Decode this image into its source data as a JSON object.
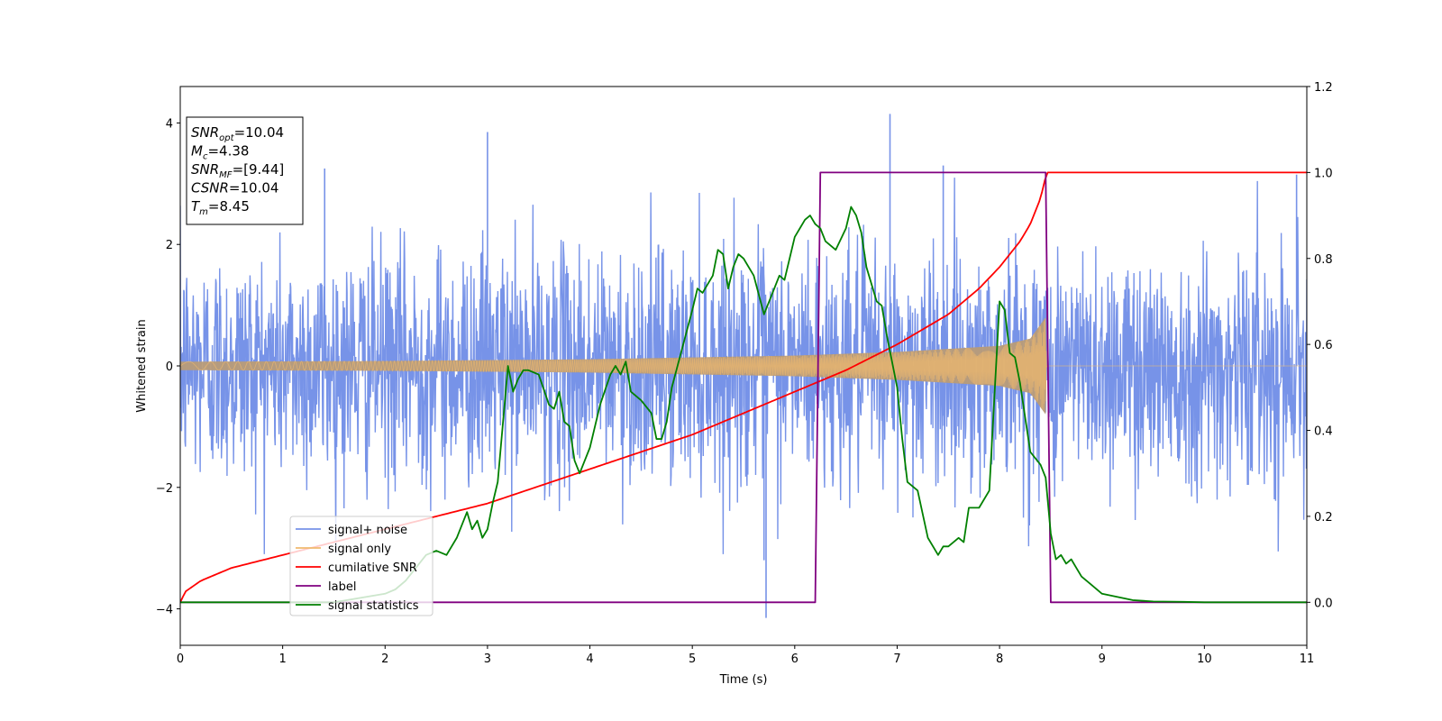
{
  "chart_data": {
    "type": "line",
    "xlabel": "Time (s)",
    "ylabel": "Whitened strain",
    "xlim": [
      0,
      11
    ],
    "ylim": [
      -4.6,
      4.6
    ],
    "y2lim": [
      -0.1,
      1.2
    ],
    "x_ticks": [
      0,
      1,
      2,
      3,
      4,
      5,
      6,
      7,
      8,
      9,
      10,
      11
    ],
    "y_ticks": [
      -4,
      -2,
      0,
      2,
      4
    ],
    "y2_ticks": [
      "0.0",
      "0.2",
      "0.4",
      "0.6",
      "0.8",
      "1.0",
      "1.2"
    ],
    "grid": false,
    "legend_position": "lower-left",
    "info_box": {
      "lines": [
        {
          "main": "SNR",
          "sub": "opt",
          "rest": "=10.04"
        },
        {
          "main": "M",
          "sub": "c",
          "rest": "=4.38"
        },
        {
          "main": "SNR",
          "sub": "MF",
          "rest": "=[9.44]"
        },
        {
          "main": "CSNR",
          "sub": "",
          "rest": "=10.04"
        },
        {
          "main": "T",
          "sub": "m",
          "rest": "=8.45"
        }
      ]
    },
    "series": [
      {
        "name": "signal+ noise",
        "color": "#7793e8",
        "axis": "left",
        "kind": "noise",
        "amplitude_sd": 0.95,
        "extremes": [
          [
            1.41,
            3.25
          ],
          [
            3.0,
            3.85
          ],
          [
            5.7,
            -3.2
          ],
          [
            5.72,
            -4.15
          ],
          [
            6.93,
            4.15
          ],
          [
            7.45,
            3.3
          ],
          [
            10.9,
            3.15
          ]
        ]
      },
      {
        "name": "signal only",
        "color": "#f0b96e",
        "axis": "left",
        "kind": "chirp",
        "envelope": [
          [
            0,
            0.07
          ],
          [
            2,
            0.08
          ],
          [
            4,
            0.11
          ],
          [
            6,
            0.17
          ],
          [
            7,
            0.23
          ],
          [
            8,
            0.33
          ],
          [
            8.3,
            0.45
          ],
          [
            8.45,
            0.8
          ],
          [
            8.46,
            0.0
          ],
          [
            11,
            0.0
          ]
        ]
      },
      {
        "name": "cumilative SNR",
        "color": "#ff0000",
        "axis": "right",
        "x": [
          0,
          0.05,
          0.2,
          0.5,
          1,
          1.5,
          2,
          2.5,
          3,
          3.5,
          4,
          4.5,
          5,
          5.5,
          6,
          6.5,
          7,
          7.5,
          7.8,
          8.0,
          8.2,
          8.3,
          8.4,
          8.45,
          8.46,
          11
        ],
        "y": [
          0.0,
          0.025,
          0.05,
          0.08,
          0.11,
          0.14,
          0.17,
          0.2,
          0.23,
          0.27,
          0.31,
          0.35,
          0.39,
          0.44,
          0.49,
          0.54,
          0.6,
          0.67,
          0.73,
          0.78,
          0.84,
          0.88,
          0.94,
          0.99,
          1.0,
          1.0
        ]
      },
      {
        "name": "label",
        "color": "#800080",
        "axis": "right",
        "x": [
          0,
          6.2,
          6.25,
          8.45,
          8.5,
          11
        ],
        "y": [
          0,
          0,
          1,
          1,
          0,
          0
        ]
      },
      {
        "name": "signal statistics",
        "color": "#008000",
        "axis": "right",
        "x": [
          0,
          0.5,
          1,
          1.5,
          2,
          2.1,
          2.2,
          2.3,
          2.4,
          2.5,
          2.6,
          2.7,
          2.8,
          2.85,
          2.9,
          2.95,
          3.0,
          3.05,
          3.1,
          3.2,
          3.25,
          3.3,
          3.35,
          3.4,
          3.5,
          3.6,
          3.65,
          3.7,
          3.75,
          3.8,
          3.85,
          3.9,
          4.0,
          4.1,
          4.2,
          4.25,
          4.3,
          4.35,
          4.4,
          4.5,
          4.6,
          4.65,
          4.7,
          4.75,
          4.8,
          4.9,
          5.0,
          5.05,
          5.1,
          5.2,
          5.25,
          5.3,
          5.35,
          5.4,
          5.45,
          5.5,
          5.6,
          5.7,
          5.8,
          5.85,
          5.9,
          6.0,
          6.1,
          6.15,
          6.2,
          6.25,
          6.3,
          6.4,
          6.5,
          6.55,
          6.6,
          6.65,
          6.7,
          6.8,
          6.85,
          6.9,
          7.0,
          7.05,
          7.1,
          7.2,
          7.3,
          7.4,
          7.45,
          7.5,
          7.6,
          7.65,
          7.7,
          7.8,
          7.9,
          8.0,
          8.05,
          8.1,
          8.15,
          8.2,
          8.3,
          8.4,
          8.45,
          8.5,
          8.55,
          8.6,
          8.65,
          8.7,
          8.75,
          8.8,
          8.9,
          9.0,
          9.1,
          9.2,
          9.3,
          9.5,
          9.8,
          10,
          11
        ],
        "y": [
          0,
          0,
          0.0,
          0.0,
          0.02,
          0.03,
          0.05,
          0.08,
          0.11,
          0.12,
          0.11,
          0.15,
          0.21,
          0.17,
          0.19,
          0.15,
          0.17,
          0.23,
          0.28,
          0.55,
          0.49,
          0.52,
          0.54,
          0.54,
          0.53,
          0.46,
          0.45,
          0.49,
          0.42,
          0.41,
          0.33,
          0.3,
          0.36,
          0.46,
          0.53,
          0.55,
          0.53,
          0.56,
          0.49,
          0.47,
          0.44,
          0.38,
          0.38,
          0.42,
          0.5,
          0.59,
          0.68,
          0.73,
          0.72,
          0.76,
          0.82,
          0.81,
          0.73,
          0.78,
          0.81,
          0.8,
          0.76,
          0.67,
          0.73,
          0.76,
          0.75,
          0.85,
          0.89,
          0.9,
          0.88,
          0.87,
          0.84,
          0.82,
          0.87,
          0.92,
          0.9,
          0.86,
          0.78,
          0.7,
          0.69,
          0.62,
          0.5,
          0.38,
          0.28,
          0.26,
          0.15,
          0.11,
          0.13,
          0.13,
          0.15,
          0.14,
          0.22,
          0.22,
          0.26,
          0.7,
          0.68,
          0.58,
          0.57,
          0.51,
          0.35,
          0.32,
          0.29,
          0.16,
          0.1,
          0.11,
          0.09,
          0.1,
          0.08,
          0.06,
          0.04,
          0.02,
          0.015,
          0.01,
          0.005,
          0.002,
          0.001,
          0,
          0
        ]
      }
    ]
  }
}
